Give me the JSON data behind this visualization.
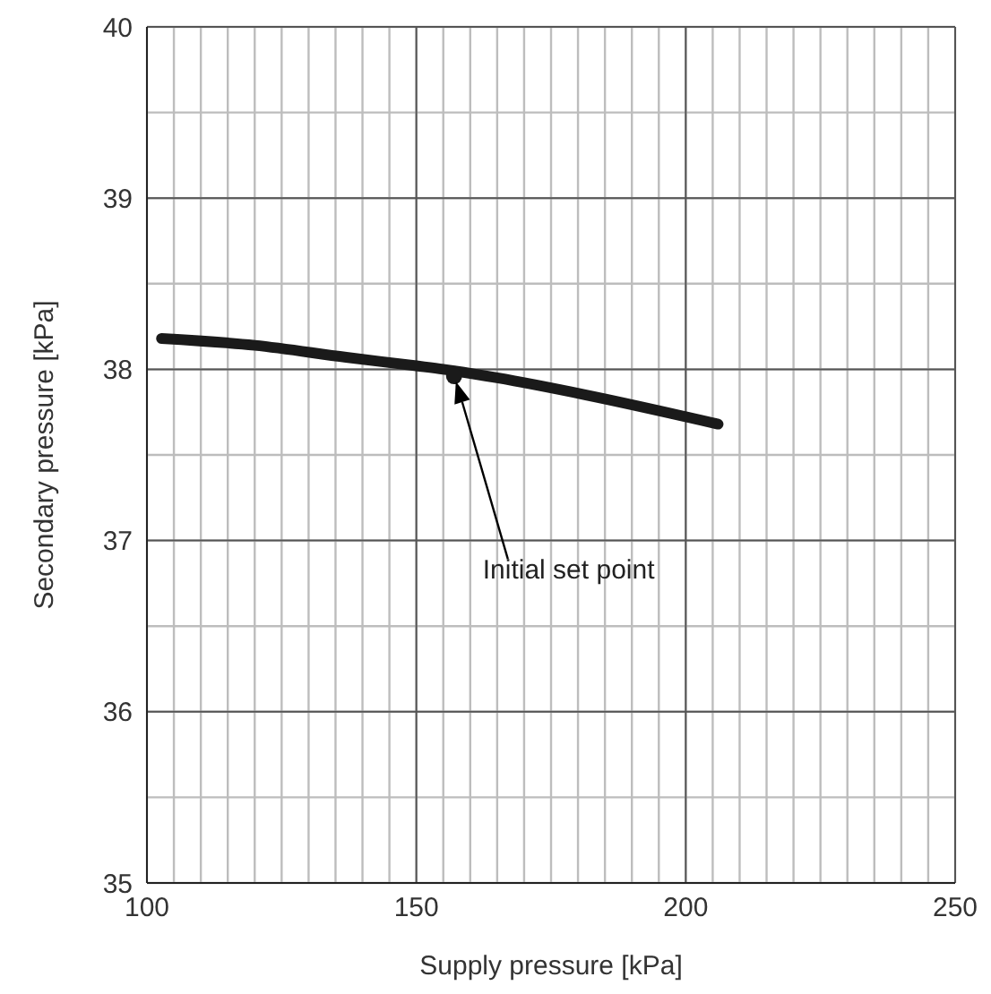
{
  "chart_data": {
    "type": "line",
    "xlabel": "Supply pressure [kPa]",
    "ylabel": "Secondary pressure [kPa]",
    "x": [
      102.7,
      120,
      137,
      150,
      155,
      165,
      181.5,
      206
    ],
    "series": [
      {
        "color": "#1a1a1a",
        "values": [
          38.18,
          38.14,
          38.07,
          38.02,
          38.0,
          37.95,
          37.85,
          37.68
        ]
      },
      {
        "type": "scatter",
        "color": "#1a1a1a",
        "marker": "circle",
        "x": [
          157
        ],
        "values": [
          37.96
        ]
      }
    ],
    "xlim": [
      100,
      250
    ],
    "xticks": [
      100,
      {
        "value": 105,
        "label": null
      },
      {
        "value": 110,
        "label": null
      },
      {
        "value": 115,
        "label": null
      },
      {
        "value": 120,
        "label": null
      },
      {
        "value": 125,
        "label": null
      },
      {
        "value": 130,
        "label": null
      },
      {
        "value": 135,
        "label": null
      },
      {
        "value": 140,
        "label": null
      },
      {
        "value": 145,
        "label": null
      },
      150,
      {
        "value": 155,
        "label": null
      },
      {
        "value": 160,
        "label": null
      },
      {
        "value": 165,
        "label": null
      },
      {
        "value": 170,
        "label": null
      },
      {
        "value": 175,
        "label": null
      },
      {
        "value": 180,
        "label": null
      },
      {
        "value": 185,
        "label": null
      },
      {
        "value": 190,
        "label": null
      },
      {
        "value": 195,
        "label": null
      },
      200,
      {
        "value": 205,
        "label": null
      },
      {
        "value": 210,
        "label": null
      },
      {
        "value": 215,
        "label": null
      },
      {
        "value": 220,
        "label": null
      },
      {
        "value": 225,
        "label": null
      },
      {
        "value": 230,
        "label": null
      },
      {
        "value": 235,
        "label": null
      },
      {
        "value": 240,
        "label": null
      },
      {
        "value": 245,
        "label": null
      },
      250
    ],
    "ylim": [
      35,
      40
    ],
    "yticks": [
      35,
      {
        "value": 35.5,
        "label": null
      },
      36,
      {
        "value": 36.5,
        "label": null
      },
      37,
      {
        "value": 37.5,
        "label": null
      },
      38,
      {
        "value": 38.5,
        "label": null
      },
      39,
      {
        "value": 39.5,
        "label": null
      },
      40
    ],
    "grid": true,
    "marker": "none",
    "line_style": "solid",
    "annotations": [
      "Initial set point"
    ]
  }
}
